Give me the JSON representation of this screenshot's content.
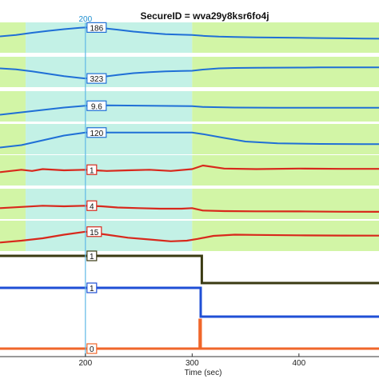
{
  "chart_data": {
    "type": "line",
    "title": "SecureID = wva29y8ksr6fo4j",
    "xlabel": "Time (sec)",
    "ylabel": "",
    "x_ticks": [
      200,
      300,
      400
    ],
    "xlim": [
      120,
      475
    ],
    "cursor": {
      "x": 200,
      "label": "200"
    },
    "colors": {
      "green_band": "#d2f5a6",
      "cyan_band": "#c3f1e6",
      "cursor": "#5fb8e6",
      "blue_trace": "#1f6fd6",
      "red_trace": "#d8281c",
      "olive_step": "#3a3a12",
      "blue_step": "#1f4fd6",
      "orange_step": "#f0662a"
    },
    "highlight_regions": [
      {
        "color": "green",
        "from": 120,
        "to": 144
      },
      {
        "color": "cyan",
        "from": 144,
        "to": 300
      },
      {
        "color": "green",
        "from": 300,
        "to": 475
      }
    ],
    "series": [
      {
        "color": "blue_trace",
        "cursor_value": "186",
        "x": [
          120,
          135,
          150,
          165,
          180,
          195,
          200,
          215,
          230,
          245,
          260,
          275,
          290,
          300,
          310,
          325,
          340,
          360,
          380,
          400,
          420,
          440,
          460,
          475
        ],
        "y": [
          0.1,
          0.22,
          0.4,
          0.56,
          0.7,
          0.82,
          0.84,
          0.8,
          0.66,
          0.5,
          0.38,
          0.28,
          0.24,
          0.22,
          0.15,
          0.08,
          0.05,
          0.02,
          0.0,
          -0.02,
          -0.04,
          -0.06,
          -0.08,
          -0.09
        ]
      },
      {
        "color": "blue_trace",
        "cursor_value": "323",
        "x": [
          120,
          135,
          150,
          165,
          180,
          195,
          200,
          215,
          230,
          245,
          260,
          275,
          290,
          300,
          310,
          325,
          340,
          360,
          380,
          400,
          420,
          440,
          460,
          475
        ],
        "y": [
          0.3,
          0.22,
          0.05,
          -0.15,
          -0.35,
          -0.5,
          -0.54,
          -0.42,
          -0.25,
          -0.1,
          -0.02,
          0.05,
          0.08,
          0.1,
          0.2,
          0.3,
          0.33,
          0.35,
          0.36,
          0.37,
          0.38,
          0.38,
          0.39,
          0.39
        ]
      },
      {
        "color": "blue_trace",
        "cursor_value": "9.6",
        "x": [
          120,
          150,
          180,
          200,
          220,
          260,
          300,
          310,
          340,
          380,
          420,
          460,
          475
        ],
        "y": [
          -0.7,
          -0.4,
          -0.1,
          0.05,
          0.08,
          0.05,
          0.02,
          -0.05,
          -0.1,
          -0.12,
          -0.12,
          -0.12,
          -0.12
        ]
      },
      {
        "color": "blue_trace",
        "cursor_value": "120",
        "x": [
          120,
          140,
          160,
          180,
          200,
          220,
          260,
          300,
          310,
          330,
          350,
          380,
          420,
          460,
          475
        ],
        "y": [
          -0.7,
          -0.5,
          -0.1,
          0.3,
          0.55,
          0.55,
          0.55,
          0.55,
          0.42,
          0.1,
          -0.2,
          -0.35,
          -0.4,
          -0.42,
          -0.42
        ]
      },
      {
        "color": "red_trace",
        "cursor_value": "1",
        "x": [
          120,
          140,
          150,
          160,
          180,
          200,
          220,
          240,
          260,
          280,
          300,
          310,
          330,
          360,
          400,
          440,
          475
        ],
        "y": [
          -0.15,
          0.05,
          -0.05,
          0.1,
          0.0,
          0.05,
          -0.05,
          0.0,
          0.05,
          -0.05,
          0.1,
          0.4,
          0.15,
          0.1,
          0.15,
          0.12,
          0.12
        ]
      },
      {
        "color": "red_trace",
        "cursor_value": "4",
        "x": [
          120,
          140,
          160,
          180,
          200,
          215,
          230,
          250,
          270,
          290,
          300,
          310,
          330,
          360,
          400,
          440,
          475
        ],
        "y": [
          -0.35,
          -0.25,
          -0.15,
          -0.2,
          -0.15,
          -0.2,
          -0.3,
          -0.35,
          -0.4,
          -0.4,
          -0.35,
          -0.55,
          -0.6,
          -0.62,
          -0.63,
          -0.65,
          -0.66
        ]
      },
      {
        "color": "red_trace",
        "cursor_value": "15",
        "x": [
          120,
          140,
          160,
          180,
          200,
          220,
          240,
          260,
          280,
          295,
          305,
          320,
          340,
          360,
          400,
          440,
          475
        ],
        "y": [
          -0.55,
          -0.4,
          -0.2,
          0.1,
          0.35,
          0.1,
          -0.15,
          -0.3,
          -0.45,
          -0.4,
          -0.25,
          0.0,
          0.1,
          0.08,
          0.05,
          0.03,
          0.02
        ]
      },
      {
        "color": "olive_step",
        "cursor_value": "1",
        "x": [
          120,
          309,
          309,
          475
        ],
        "y": [
          1,
          1,
          0,
          0
        ]
      },
      {
        "color": "blue_step",
        "cursor_value": "1",
        "x": [
          120,
          308,
          308,
          475
        ],
        "y": [
          1,
          1,
          0,
          0
        ]
      },
      {
        "color": "orange_step",
        "cursor_value": "0",
        "x": [
          120,
          307,
          307,
          308,
          308,
          475
        ],
        "y": [
          0,
          0,
          1,
          1,
          0,
          0
        ]
      }
    ]
  }
}
